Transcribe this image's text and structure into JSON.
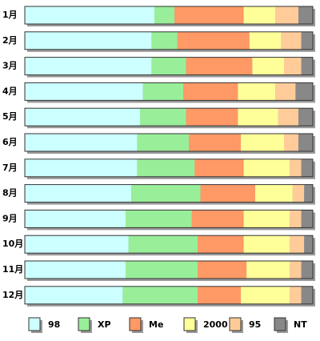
{
  "chart_data": {
    "type": "stacked_bar_100",
    "categories": [
      "1月",
      "2月",
      "3月",
      "4月",
      "5月",
      "6月",
      "7月",
      "8月",
      "9月",
      "10月",
      "11月",
      "12月"
    ],
    "series": [
      {
        "name": "98",
        "color": "#ccffff",
        "values": [
          45,
          44,
          44,
          41,
          40,
          39,
          39,
          37,
          35,
          36,
          35,
          34
        ]
      },
      {
        "name": "XP",
        "color": "#99ee99",
        "values": [
          7,
          9,
          12,
          14,
          16,
          18,
          20,
          24,
          23,
          24,
          25,
          26
        ]
      },
      {
        "name": "Me",
        "color": "#ff9966",
        "values": [
          24,
          25,
          23,
          19,
          18,
          18,
          17,
          19,
          18,
          16,
          17,
          15
        ]
      },
      {
        "name": "2000",
        "color": "#ffff99",
        "values": [
          11,
          11,
          11,
          13,
          14,
          15,
          16,
          13,
          16,
          16,
          15,
          17
        ]
      },
      {
        "name": "95",
        "color": "#ffcc99",
        "values": [
          8,
          7,
          6,
          7,
          7,
          5,
          4,
          4,
          4,
          5,
          4,
          4
        ]
      },
      {
        "name": "NT",
        "color": "#888888",
        "values": [
          5,
          4,
          4,
          6,
          5,
          5,
          4,
          3,
          4,
          3,
          4,
          4
        ]
      }
    ]
  }
}
